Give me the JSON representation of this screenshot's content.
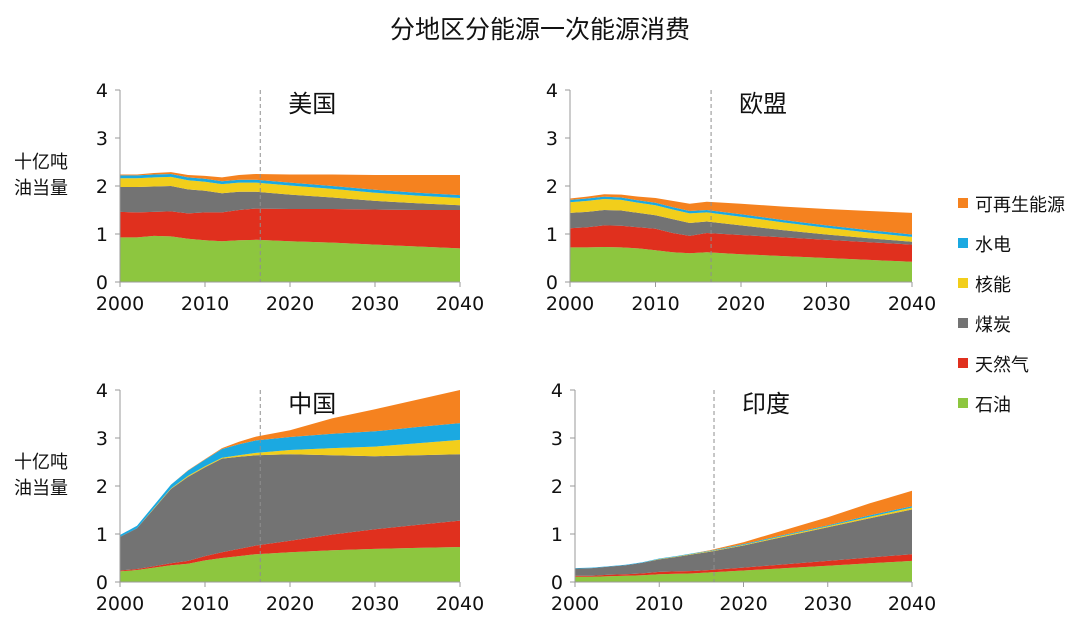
{
  "title": "分地区分能源一次能源消费",
  "y_unit_label_line1": "十亿吨",
  "y_unit_label_line2": "油当量",
  "legend": [
    {
      "label": "可再生能源",
      "color": "#F5821F"
    },
    {
      "label": "水电",
      "color": "#1BA9E1"
    },
    {
      "label": "核能",
      "color": "#F2CE1B"
    },
    {
      "label": "煤炭",
      "color": "#737373"
    },
    {
      "label": "天然气",
      "color": "#E0301E"
    },
    {
      "label": "石油",
      "color": "#8DC63F"
    }
  ],
  "chart_data": [
    {
      "type": "area",
      "title": "美国",
      "x": [
        2000,
        2002,
        2004,
        2006,
        2008,
        2010,
        2012,
        2014,
        2016,
        2020,
        2025,
        2030,
        2035,
        2040
      ],
      "xlim": [
        2000,
        2040
      ],
      "ylim": [
        0,
        4
      ],
      "xticks": [
        "2000",
        "2010",
        "2020",
        "2030",
        "2040"
      ],
      "yticks": [
        "0",
        "1",
        "2",
        "3",
        "4"
      ],
      "projection_start": 2016.5,
      "series": [
        {
          "name": "石油",
          "color": "#8DC63F",
          "values": [
            0.93,
            0.93,
            0.96,
            0.95,
            0.9,
            0.87,
            0.85,
            0.87,
            0.88,
            0.85,
            0.82,
            0.78,
            0.74,
            0.7
          ]
        },
        {
          "name": "天然气",
          "color": "#E0301E",
          "values": [
            0.53,
            0.52,
            0.5,
            0.52,
            0.53,
            0.58,
            0.6,
            0.63,
            0.65,
            0.67,
            0.7,
            0.73,
            0.76,
            0.8
          ]
        },
        {
          "name": "煤炭",
          "color": "#737373",
          "values": [
            0.52,
            0.53,
            0.53,
            0.53,
            0.5,
            0.45,
            0.4,
            0.38,
            0.35,
            0.3,
            0.24,
            0.18,
            0.14,
            0.1
          ]
        },
        {
          "name": "核能",
          "color": "#F2CE1B",
          "values": [
            0.18,
            0.18,
            0.19,
            0.19,
            0.19,
            0.19,
            0.19,
            0.19,
            0.19,
            0.19,
            0.18,
            0.17,
            0.16,
            0.15
          ]
        },
        {
          "name": "水电",
          "color": "#1BA9E1",
          "values": [
            0.06,
            0.06,
            0.06,
            0.06,
            0.06,
            0.06,
            0.06,
            0.06,
            0.06,
            0.06,
            0.06,
            0.06,
            0.06,
            0.06
          ]
        },
        {
          "name": "可再生能源",
          "color": "#F5821F",
          "values": [
            0.02,
            0.02,
            0.03,
            0.04,
            0.05,
            0.06,
            0.08,
            0.1,
            0.12,
            0.17,
            0.24,
            0.31,
            0.37,
            0.42
          ]
        }
      ]
    },
    {
      "type": "area",
      "title": "欧盟",
      "x": [
        2000,
        2002,
        2004,
        2006,
        2008,
        2010,
        2012,
        2014,
        2016,
        2020,
        2025,
        2030,
        2035,
        2040
      ],
      "xlim": [
        2000,
        2040
      ],
      "ylim": [
        0,
        4
      ],
      "xticks": [
        "2000",
        "2010",
        "2020",
        "2030",
        "2040"
      ],
      "yticks": [
        "0",
        "1",
        "2",
        "3",
        "4"
      ],
      "projection_start": 2016.5,
      "series": [
        {
          "name": "石油",
          "color": "#8DC63F",
          "values": [
            0.72,
            0.72,
            0.73,
            0.72,
            0.7,
            0.66,
            0.62,
            0.6,
            0.62,
            0.58,
            0.54,
            0.5,
            0.46,
            0.42
          ]
        },
        {
          "name": "天然气",
          "color": "#E0301E",
          "values": [
            0.4,
            0.42,
            0.45,
            0.45,
            0.44,
            0.45,
            0.4,
            0.36,
            0.4,
            0.4,
            0.39,
            0.38,
            0.37,
            0.36
          ]
        },
        {
          "name": "煤炭",
          "color": "#737373",
          "values": [
            0.32,
            0.32,
            0.32,
            0.32,
            0.3,
            0.28,
            0.29,
            0.27,
            0.24,
            0.2,
            0.15,
            0.11,
            0.08,
            0.06
          ]
        },
        {
          "name": "核能",
          "color": "#F2CE1B",
          "values": [
            0.22,
            0.23,
            0.23,
            0.22,
            0.21,
            0.21,
            0.2,
            0.2,
            0.19,
            0.18,
            0.16,
            0.14,
            0.12,
            0.1
          ]
        },
        {
          "name": "水电",
          "color": "#1BA9E1",
          "values": [
            0.05,
            0.05,
            0.05,
            0.05,
            0.05,
            0.05,
            0.05,
            0.05,
            0.05,
            0.05,
            0.05,
            0.05,
            0.05,
            0.05
          ]
        },
        {
          "name": "可再生能源",
          "color": "#F5821F",
          "values": [
            0.03,
            0.04,
            0.05,
            0.06,
            0.08,
            0.1,
            0.13,
            0.15,
            0.17,
            0.22,
            0.28,
            0.34,
            0.4,
            0.45
          ]
        }
      ]
    },
    {
      "type": "area",
      "title": "中国",
      "x": [
        2000,
        2002,
        2004,
        2006,
        2008,
        2010,
        2012,
        2014,
        2016,
        2020,
        2025,
        2030,
        2035,
        2040
      ],
      "xlim": [
        2000,
        2040
      ],
      "ylim": [
        0,
        4
      ],
      "xticks": [
        "2000",
        "2010",
        "2020",
        "2030",
        "2040"
      ],
      "yticks": [
        "0",
        "1",
        "2",
        "3",
        "4"
      ],
      "projection_start": 2016.5,
      "series": [
        {
          "name": "石油",
          "color": "#8DC63F",
          "values": [
            0.22,
            0.25,
            0.3,
            0.35,
            0.38,
            0.45,
            0.5,
            0.54,
            0.58,
            0.62,
            0.66,
            0.69,
            0.71,
            0.73
          ]
        },
        {
          "name": "天然气",
          "color": "#E0301E",
          "values": [
            0.02,
            0.02,
            0.03,
            0.04,
            0.06,
            0.09,
            0.12,
            0.15,
            0.18,
            0.24,
            0.33,
            0.41,
            0.48,
            0.55
          ]
        },
        {
          "name": "煤炭",
          "color": "#737373",
          "values": [
            0.7,
            0.85,
            1.2,
            1.55,
            1.75,
            1.85,
            1.95,
            1.92,
            1.88,
            1.8,
            1.65,
            1.52,
            1.45,
            1.38
          ]
        },
        {
          "name": "核能",
          "color": "#F2CE1B",
          "values": [
            0.0,
            0.0,
            0.01,
            0.01,
            0.02,
            0.02,
            0.02,
            0.03,
            0.05,
            0.09,
            0.15,
            0.2,
            0.25,
            0.3
          ]
        },
        {
          "name": "水电",
          "color": "#1BA9E1",
          "values": [
            0.04,
            0.05,
            0.06,
            0.08,
            0.11,
            0.14,
            0.18,
            0.23,
            0.26,
            0.27,
            0.3,
            0.32,
            0.34,
            0.35
          ]
        },
        {
          "name": "可再生能源",
          "color": "#F5821F",
          "values": [
            0.0,
            0.0,
            0.0,
            0.0,
            0.01,
            0.01,
            0.02,
            0.05,
            0.08,
            0.14,
            0.32,
            0.46,
            0.57,
            0.69
          ]
        }
      ]
    },
    {
      "type": "area",
      "title": "印度",
      "x": [
        2000,
        2002,
        2004,
        2006,
        2008,
        2010,
        2012,
        2014,
        2016,
        2020,
        2025,
        2030,
        2035,
        2040
      ],
      "xlim": [
        2000,
        2040
      ],
      "ylim": [
        0,
        4
      ],
      "xticks": [
        "2000",
        "2010",
        "2020",
        "2030",
        "2040"
      ],
      "yticks": [
        "0",
        "1",
        "2",
        "3",
        "4"
      ],
      "projection_start": 2016.5,
      "series": [
        {
          "name": "石油",
          "color": "#8DC63F",
          "values": [
            0.11,
            0.11,
            0.12,
            0.13,
            0.14,
            0.16,
            0.17,
            0.18,
            0.2,
            0.24,
            0.29,
            0.34,
            0.39,
            0.44
          ]
        },
        {
          "name": "天然气",
          "color": "#E0301E",
          "values": [
            0.02,
            0.02,
            0.03,
            0.03,
            0.04,
            0.05,
            0.05,
            0.05,
            0.05,
            0.06,
            0.08,
            0.1,
            0.12,
            0.14
          ]
        },
        {
          "name": "煤炭",
          "color": "#737373",
          "values": [
            0.15,
            0.16,
            0.17,
            0.19,
            0.22,
            0.26,
            0.3,
            0.35,
            0.38,
            0.46,
            0.58,
            0.7,
            0.82,
            0.93
          ]
        },
        {
          "name": "核能",
          "color": "#F2CE1B",
          "values": [
            0.0,
            0.0,
            0.0,
            0.0,
            0.0,
            0.01,
            0.01,
            0.01,
            0.01,
            0.01,
            0.02,
            0.02,
            0.03,
            0.04
          ]
        },
        {
          "name": "水电",
          "color": "#1BA9E1",
          "values": [
            0.01,
            0.01,
            0.01,
            0.01,
            0.01,
            0.01,
            0.01,
            0.01,
            0.01,
            0.02,
            0.02,
            0.02,
            0.03,
            0.03
          ]
        },
        {
          "name": "可再生能源",
          "color": "#F5821F",
          "values": [
            0.0,
            0.0,
            0.0,
            0.0,
            0.0,
            0.0,
            0.0,
            0.0,
            0.01,
            0.04,
            0.1,
            0.17,
            0.25,
            0.32
          ]
        }
      ]
    }
  ]
}
